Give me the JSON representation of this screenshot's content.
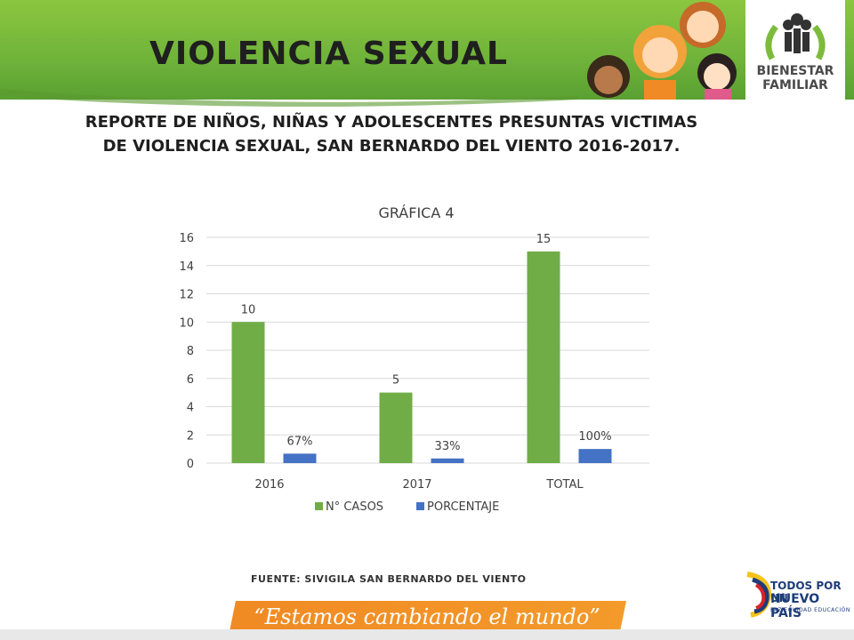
{
  "header": {
    "title": "VIOLENCIA SEXUAL",
    "logo_line1": "BIENESTAR",
    "logo_line2": "FAMILIAR"
  },
  "subtitle": {
    "line1": "REPORTE DE NIÑOS, NIÑAS Y ADOLESCENTES PRESUNTAS VICTIMAS",
    "line2": "DE VIOLENCIA SEXUAL, SAN BERNARDO DEL VIENTO 2016-2017."
  },
  "source": "FUENTE: SIVIGILA SAN BERNARDO DEL VIENTO",
  "footer": {
    "slogan": "“Estamos cambiando el mundo”",
    "gov_line1": "TODOS POR UN",
    "gov_line2": "NUEVO PAÍS",
    "gov_line3": "PAZ  EQUIDAD  EDUCACIÓN"
  },
  "colors": {
    "green": "#70ad47",
    "blue": "#4472c4",
    "header_green": "#7dbb3d",
    "slogan_orange": "#f08a24"
  },
  "chart_data": {
    "type": "bar",
    "title": "GRÁFICA 4",
    "categories": [
      "2016",
      "2017",
      "TOTAL"
    ],
    "series": [
      {
        "name": "N° CASOS",
        "values": [
          10,
          5,
          15
        ],
        "labels": [
          "10",
          "5",
          "15"
        ]
      },
      {
        "name": "PORCENTAJE",
        "values": [
          0.67,
          0.33,
          1.0
        ],
        "labels": [
          "67%",
          "33%",
          "100%"
        ]
      }
    ],
    "ylim": [
      0,
      16
    ],
    "yticks": [
      "0",
      "2",
      "4",
      "6",
      "8",
      "10",
      "12",
      "14",
      "16"
    ],
    "grid": true,
    "legend": "bottom"
  }
}
